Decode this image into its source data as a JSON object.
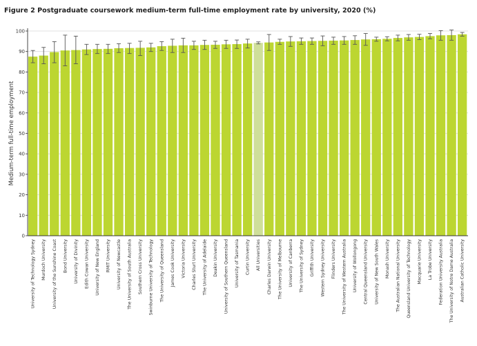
{
  "chart_data": {
    "type": "bar",
    "title": "Figure 2 Postgraduate coursework medium-term full-time employment rate by university, 2020 (%)",
    "xlabel": "",
    "ylabel": "Medium-term full-time employment",
    "ylim": [
      0,
      100
    ],
    "yticks": [
      0,
      10,
      20,
      30,
      40,
      50,
      60,
      70,
      80,
      90,
      100
    ],
    "grid": true,
    "legend": "none",
    "colors": {
      "bar": "#bcd631",
      "highlight": "#cfdf9a",
      "error": "#555555",
      "grid": "#d9d9d9",
      "axis": "#333333"
    },
    "highlight_category": "All Universities",
    "categories": [
      "University of Technology Sydney",
      "Murdoch University",
      "University of the Sunshine Coast",
      "Bond University",
      "University of Divinity",
      "Edith Cowan University",
      "University of New England",
      "RMIT University",
      "University of Newcastle",
      "The University of South Australia",
      "Southern Cross University",
      "Swinburne University of Technology",
      "The University of Queensland",
      "James Cook University",
      "Victoria University",
      "Charles Sturt University",
      "The University of Adelaide",
      "Deakin University",
      "University of Southern Queensland",
      "University of Tasmania",
      "Curtin University",
      "All Universities",
      "Charles Darwin University",
      "The University of Melbourne",
      "University of Canberra",
      "The University of Sydney",
      "Griffith University",
      "Western Sydney University",
      "Flinders University",
      "The University of Western Australia",
      "University of Wollongong",
      "Central Queensland University",
      "University of New South Wales",
      "Monash University",
      "The Australian National University",
      "Queensland University of Technology",
      "Macquarie University",
      "La Trobe University",
      "Federation University Australia",
      "The University of Notre Dame Australia",
      "Australian Catholic University"
    ],
    "values": [
      87.5,
      88.0,
      89.7,
      90.5,
      90.7,
      91.0,
      91.2,
      91.3,
      91.6,
      91.7,
      91.8,
      92.0,
      92.6,
      92.8,
      93.0,
      93.0,
      93.2,
      93.3,
      93.5,
      93.6,
      93.9,
      94.2,
      94.4,
      94.7,
      94.9,
      95.0,
      95.1,
      95.2,
      95.3,
      95.4,
      95.6,
      95.9,
      96.0,
      96.2,
      96.6,
      96.9,
      97.1,
      97.5,
      97.9,
      98.0,
      98.4
    ],
    "error_low": [
      84.5,
      84.0,
      84.5,
      83.0,
      84.0,
      88.5,
      89.0,
      89.0,
      89.5,
      89.0,
      88.0,
      90.0,
      90.5,
      89.5,
      89.5,
      91.0,
      91.0,
      91.5,
      91.5,
      91.5,
      91.7,
      93.7,
      90.5,
      93.5,
      92.5,
      93.5,
      93.5,
      92.8,
      93.5,
      93.5,
      93.5,
      93.0,
      95.0,
      95.2,
      95.2,
      95.5,
      95.8,
      96.2,
      95.5,
      95.5,
      97.5
    ],
    "error_high": [
      90.5,
      92.0,
      94.8,
      98.0,
      97.5,
      93.5,
      93.5,
      93.5,
      93.8,
      94.0,
      95.0,
      94.0,
      94.8,
      96.0,
      96.5,
      95.0,
      95.5,
      95.0,
      95.5,
      95.6,
      96.0,
      94.7,
      98.3,
      96.0,
      97.3,
      96.6,
      96.6,
      97.6,
      97.0,
      97.3,
      97.7,
      98.8,
      97.0,
      97.2,
      98.0,
      98.3,
      98.4,
      98.8,
      100.2,
      100.5,
      99.3
    ]
  }
}
